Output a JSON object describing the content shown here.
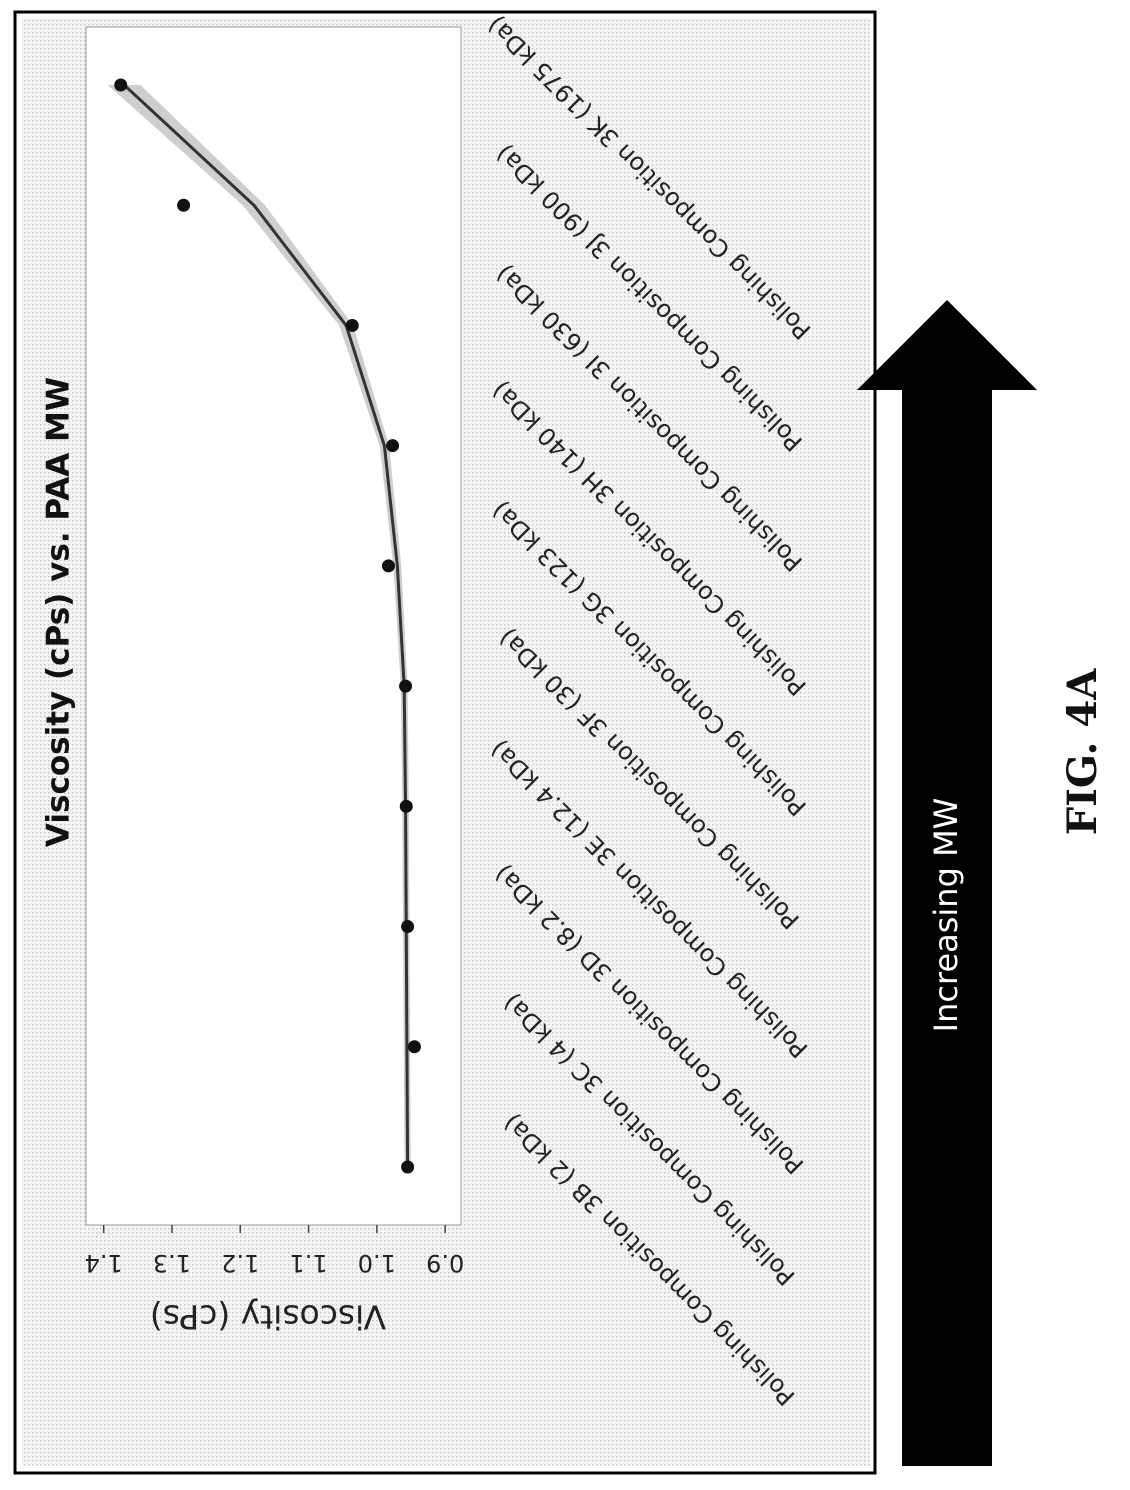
{
  "figure_label": "FIG. 4A",
  "arrow_label": "Increasing MW",
  "chart_data": {
    "type": "line",
    "title": "Viscosity (cPs) vs. PAA MW",
    "xlabel": "",
    "ylabel": "Viscosity (cPs)",
    "ylim": [
      0.89,
      1.42
    ],
    "y_ticks": [
      "1.4",
      "1.3",
      "1.2",
      "1.1",
      "1.0",
      "0.9"
    ],
    "grid": false,
    "legend": "none",
    "categories": [
      "Polishing Composition 3B (2 kDa)",
      "Polishing Composition 3C (4 kDa)",
      "Polishing Composition 3D (8.2 kDa)",
      "Polishing Composition 3E (12.4 kDa)",
      "Polishing Composition 3F (30 kDa)",
      "Polishing Composition 3G (123 kDa)",
      "Polishing Composition 3H (140 kDa)",
      "Polishing Composition 3I (630 kDa)",
      "Polishing Composition 3J (900 kDa)",
      "Polishing Composition 3K (1975 kDa)"
    ],
    "series": [
      {
        "values": [
          0.955,
          0.945,
          0.955,
          0.957,
          0.958,
          0.983,
          0.977,
          1.036,
          1.283,
          1.375
        ]
      }
    ],
    "fit_curve": [
      0.955,
      0.956,
      0.957,
      0.958,
      0.96,
      0.97,
      0.989,
      1.045,
      1.18,
      1.37
    ],
    "colors": {
      "points": "#111111",
      "fit_line": "#333333",
      "band": "#bdbdbd",
      "arrow": "#000000"
    }
  }
}
